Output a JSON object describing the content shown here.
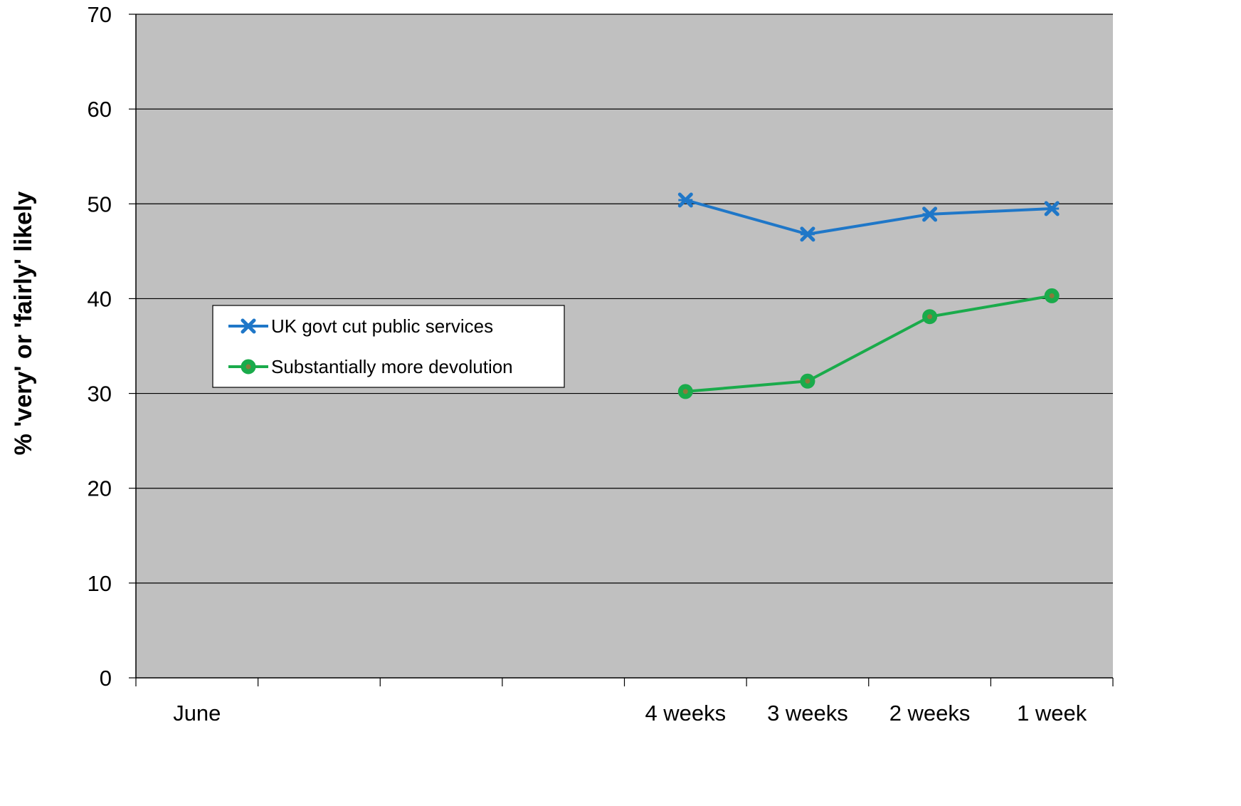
{
  "chart_data": {
    "type": "line",
    "title": "",
    "xlabel": "",
    "ylabel": "% 'very' or 'fairly' likely",
    "categories": [
      "June",
      "",
      "",
      "",
      "4 weeks",
      "3 weeks",
      "2 weeks",
      "1 week"
    ],
    "ylim": [
      0,
      70
    ],
    "yticks": [
      0,
      10,
      20,
      30,
      40,
      50,
      60,
      70
    ],
    "grid": "horizontal",
    "plot_background": "#c0c0c0",
    "legend_position": "left-middle",
    "series": [
      {
        "name": "UK govt cut public services",
        "color": "#1f77c8",
        "marker": "x",
        "values": [
          null,
          null,
          null,
          null,
          50.4,
          46.8,
          48.9,
          49.5
        ]
      },
      {
        "name": "Substantially more devolution",
        "color": "#1aab4b",
        "marker": "circle",
        "values": [
          null,
          null,
          null,
          null,
          30.2,
          31.3,
          38.1,
          40.3
        ]
      }
    ]
  }
}
